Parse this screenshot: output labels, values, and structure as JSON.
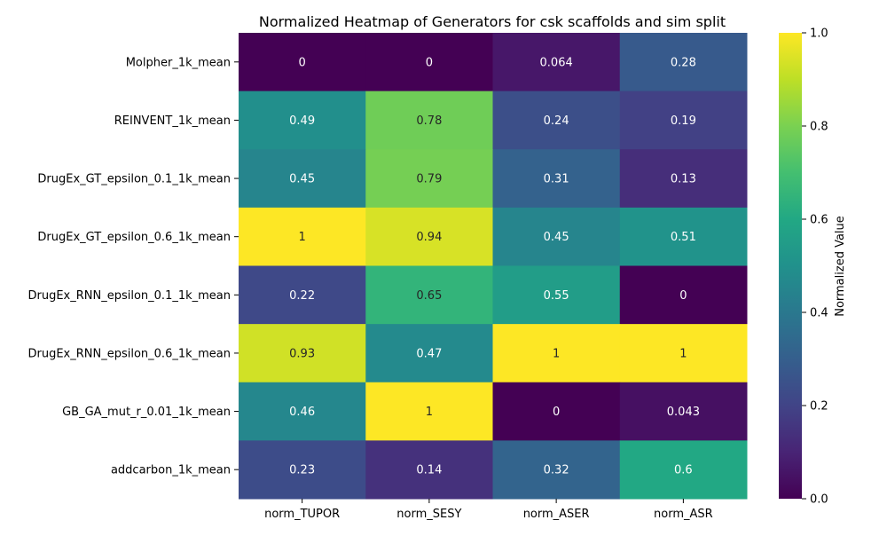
{
  "chart_data": {
    "type": "heatmap",
    "title": "Normalized Heatmap of Generators for csk scaffolds and sim split",
    "rows": [
      "Molpher_1k_mean",
      "REINVENT_1k_mean",
      "DrugEx_GT_epsilon_0.1_1k_mean",
      "DrugEx_GT_epsilon_0.6_1k_mean",
      "DrugEx_RNN_epsilon_0.1_1k_mean",
      "DrugEx_RNN_epsilon_0.6_1k_mean",
      "GB_GA_mut_r_0.01_1k_mean",
      "addcarbon_1k_mean"
    ],
    "columns": [
      "norm_TUPOR",
      "norm_SESY",
      "norm_ASER",
      "norm_ASR"
    ],
    "values": [
      [
        0,
        0,
        0.064,
        0.28
      ],
      [
        0.49,
        0.78,
        0.24,
        0.19
      ],
      [
        0.45,
        0.79,
        0.31,
        0.13
      ],
      [
        1,
        0.94,
        0.45,
        0.51
      ],
      [
        0.22,
        0.65,
        0.55,
        0
      ],
      [
        0.93,
        0.47,
        1,
        1
      ],
      [
        0.46,
        1,
        0,
        0.043
      ],
      [
        0.23,
        0.14,
        0.32,
        0.6
      ]
    ],
    "labels": [
      [
        "0",
        "0",
        "0.064",
        "0.28"
      ],
      [
        "0.49",
        "0.78",
        "0.24",
        "0.19"
      ],
      [
        "0.45",
        "0.79",
        "0.31",
        "0.13"
      ],
      [
        "1",
        "0.94",
        "0.45",
        "0.51"
      ],
      [
        "0.22",
        "0.65",
        "0.55",
        "0"
      ],
      [
        "0.93",
        "0.47",
        "1",
        "1"
      ],
      [
        "0.46",
        "1",
        "0",
        "0.043"
      ],
      [
        "0.23",
        "0.14",
        "0.32",
        "0.6"
      ]
    ],
    "colormap": "viridis",
    "colorbar": {
      "label": "Normalized Value",
      "range": [
        0,
        1
      ],
      "ticks": [
        "0.0",
        "0.2",
        "0.4",
        "0.6",
        "0.8",
        "1.0"
      ]
    },
    "grid": false,
    "legend": "right"
  }
}
